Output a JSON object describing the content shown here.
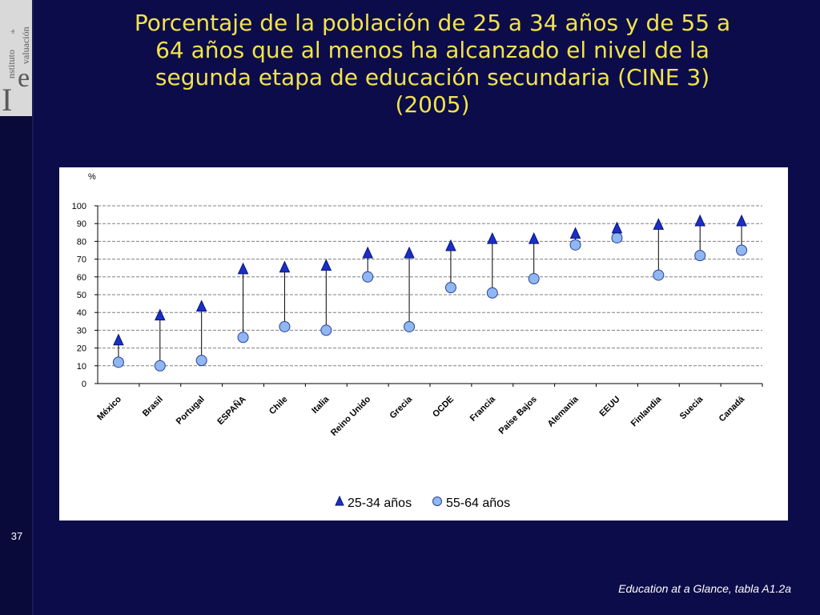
{
  "slide": {
    "number": "37",
    "title_lines": [
      "Porcentaje de la población de 25 a 34 años y de 55 a",
      "64 años que al menos ha alcanzado el nivel de la",
      "segunda etapa de educación secundaria (CINE 3)",
      "(2005)"
    ],
    "source": "Education at a Glance, tabla  A1.2a"
  },
  "logo": {
    "initial_1": "I",
    "initial_2": "e",
    "word_1": "nstituto",
    "word_small": "de",
    "word_2": "valuación"
  },
  "colors": {
    "background": "#0c0c4a",
    "title": "#f2e34c",
    "triangle": "#1a2ec8",
    "circle": "#8fb8f0"
  },
  "chart_data": {
    "type": "scatter",
    "title": "",
    "ylabel": "%",
    "xlabel": "",
    "ylim": [
      0,
      100
    ],
    "yticks": [
      0,
      10,
      20,
      30,
      40,
      50,
      60,
      70,
      80,
      90,
      100
    ],
    "grid": true,
    "legend_position": "bottom",
    "categories": [
      "México",
      "Brasil",
      "Portugal",
      "ESPAÑA",
      "Chile",
      "Italia",
      "Reino Unido",
      "Grecia",
      "OCDE",
      "Francia",
      "Paíse Bajos",
      "Alemania",
      "EEUU",
      "Finlandia",
      "Suecia",
      "Canadá"
    ],
    "series": [
      {
        "name": "25-34 años",
        "marker": "triangle",
        "values": [
          24,
          38,
          43,
          64,
          65,
          66,
          73,
          73,
          77,
          81,
          81,
          84,
          87,
          89,
          91,
          91
        ]
      },
      {
        "name": "55-64 años",
        "marker": "circle",
        "values": [
          12,
          10,
          13,
          26,
          32,
          30,
          60,
          32,
          54,
          51,
          59,
          78,
          82,
          61,
          72,
          75
        ]
      }
    ]
  }
}
